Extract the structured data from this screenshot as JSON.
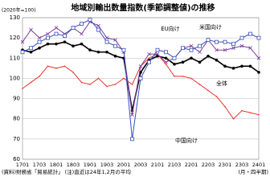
{
  "chart_data": {
    "type": "line",
    "title": "地域別輸出数量指数(季節調整値)の推移",
    "y_unit": "(2020年=100)",
    "x_unit": "(月・四半期)",
    "footnote": "(資料)財務省「貿易統計」 (注)直近は24年1,2月の平均",
    "categories": [
      "1701",
      null,
      "1703",
      null,
      "1801",
      null,
      "1803",
      null,
      "1901",
      null,
      "1903",
      null,
      "2001",
      null,
      "2003",
      null,
      "2101",
      null,
      "2103",
      null,
      "2201",
      null,
      "2203",
      null,
      "2301",
      null,
      "2303",
      null,
      "2401"
    ],
    "ylim": [
      60,
      130
    ],
    "yticks": [
      60,
      70,
      80,
      90,
      100,
      110,
      120,
      130
    ],
    "grid": true,
    "series": [
      {
        "name": "全体",
        "color": "#000000",
        "marker": "circle",
        "values": [
          114,
          113,
          115,
          117,
          117,
          118,
          116,
          117,
          114,
          113,
          113,
          111,
          110,
          84,
          103,
          109,
          111,
          110,
          107,
          108,
          110,
          108,
          111,
          109,
          106,
          105,
          106,
          106,
          103
        ]
      },
      {
        "name": "中国向け",
        "color": "#e8322a",
        "marker": "none",
        "values": [
          95,
          98,
          101,
          106,
          105,
          106,
          103,
          98,
          97,
          100,
          96,
          97,
          100,
          97,
          106,
          110,
          112,
          107,
          101,
          101,
          100,
          97,
          94,
          91,
          86,
          80,
          84,
          83,
          82
        ]
      },
      {
        "name": "米国向け",
        "color": "#7b3fa0",
        "marker": "cross",
        "values": [
          118,
          124,
          120,
          122,
          125,
          122,
          125,
          122,
          128,
          126,
          120,
          119,
          113,
          82,
          106,
          112,
          112,
          108,
          110,
          115,
          116,
          113,
          119,
          114,
          114,
          115,
          116,
          115,
          110
        ]
      },
      {
        "name": "EU向け",
        "color": "#3a4fb8",
        "marker": "square",
        "values": [
          113,
          115,
          118,
          120,
          122,
          121,
          125,
          127,
          129,
          124,
          118,
          116,
          114,
          70,
          100,
          108,
          114,
          113,
          110,
          115,
          114,
          116,
          119,
          118,
          118,
          117,
          120,
          122,
          120
        ]
      }
    ]
  }
}
